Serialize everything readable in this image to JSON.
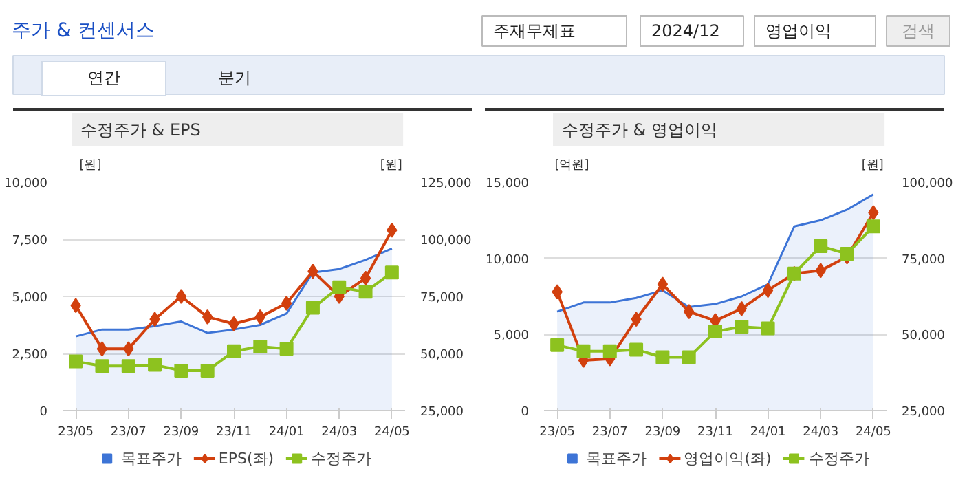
{
  "chart_data": [
    {
      "type": "other",
      "title": "주가 & 컨센서스",
      "annotations": [
        "주재무제표",
        "2024/12",
        "영업이익",
        "검색",
        "연간",
        "분기"
      ]
    },
    {
      "type": "line",
      "title": "수정주가 & EPS",
      "ylabel": "[원]",
      "y2label": "[원]",
      "categories": [
        "23/05",
        null,
        "23/07",
        null,
        "23/09",
        null,
        "23/11",
        null,
        "24/01",
        null,
        "24/03",
        null,
        "24/05"
      ],
      "ylim": [
        0,
        10000
      ],
      "yticks": [
        0,
        {
          "value": 2500,
          "label": "2,500"
        },
        {
          "value": 5000,
          "label": "5,000"
        },
        {
          "value": 7500,
          "label": "7,500"
        },
        {
          "value": 10000,
          "label": "10,000"
        }
      ],
      "y2lim": [
        25000,
        125000
      ],
      "y2ticks": [
        {
          "value": 25000,
          "label": "25,000"
        },
        {
          "value": 50000,
          "label": "50,000"
        },
        {
          "value": 75000,
          "label": "75,000"
        },
        {
          "value": 100000,
          "label": "100,000"
        },
        {
          "value": 125000,
          "label": "125,000"
        }
      ],
      "grid": "y",
      "legend": "bottom",
      "series": [
        {
          "name": "목표주가",
          "type": "area",
          "axis": "y2",
          "color": "#3d74d6",
          "values": [
            57500,
            60500,
            60500,
            62000,
            64000,
            59000,
            60500,
            62500,
            67500,
            85500,
            87000,
            91000,
            96000
          ]
        },
        {
          "name": "EPS(좌)",
          "type": "line",
          "axis": "y",
          "color": "#d2400e",
          "marker": "diamond",
          "values": [
            4600,
            2700,
            2700,
            4000,
            5000,
            4100,
            3800,
            4100,
            4700,
            6100,
            5000,
            5800,
            7900
          ]
        },
        {
          "name": "수정주가",
          "type": "line",
          "axis": "y2",
          "color": "#8dc21f",
          "marker": "square",
          "values": [
            46500,
            44500,
            44500,
            45000,
            42500,
            42500,
            51000,
            53000,
            52000,
            70000,
            79000,
            77000,
            85500
          ]
        }
      ]
    },
    {
      "type": "line",
      "title": "수정주가 & 영업이익",
      "ylabel": "[억원]",
      "y2label": "[원]",
      "categories": [
        "23/05",
        null,
        "23/07",
        null,
        "23/09",
        null,
        "23/11",
        null,
        "24/01",
        null,
        "24/03",
        null,
        "24/05"
      ],
      "ylim": [
        0,
        15000
      ],
      "yticks": [
        0,
        {
          "value": 5000,
          "label": "5,000"
        },
        {
          "value": 10000,
          "label": "10,000"
        },
        {
          "value": 15000,
          "label": "15,000"
        }
      ],
      "y2lim": [
        25000,
        100000
      ],
      "y2ticks": [
        {
          "value": 25000,
          "label": "25,000"
        },
        {
          "value": 50000,
          "label": "50,000"
        },
        {
          "value": 75000,
          "label": "75,000"
        },
        {
          "value": 100000,
          "label": "100,000"
        }
      ],
      "grid": "y",
      "legend": "bottom",
      "series": [
        {
          "name": "목표주가",
          "type": "area",
          "axis": "y2",
          "color": "#3d74d6",
          "values": [
            57500,
            60500,
            60500,
            62000,
            64500,
            59000,
            60000,
            62500,
            66500,
            85500,
            87500,
            91000,
            96000
          ]
        },
        {
          "name": "영업이익(좌)",
          "type": "line",
          "axis": "y",
          "color": "#d2400e",
          "marker": "diamond",
          "values": [
            7800,
            3300,
            3400,
            6000,
            8300,
            6500,
            5900,
            6700,
            7900,
            9000,
            9200,
            10100,
            13000
          ]
        },
        {
          "name": "수정주가",
          "type": "line",
          "axis": "y2",
          "color": "#8dc21f",
          "marker": "square",
          "values": [
            46500,
            44500,
            44500,
            45000,
            42500,
            42500,
            51000,
            52500,
            52000,
            70000,
            79000,
            76500,
            85500
          ]
        }
      ]
    }
  ]
}
